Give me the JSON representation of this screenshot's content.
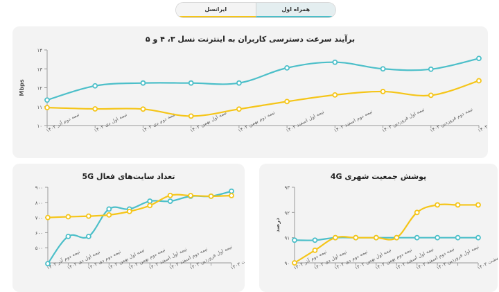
{
  "toggle": {
    "operator_mci": "همراه اول",
    "operator_irancell": "ایرانسل"
  },
  "colors": {
    "mci": "#4cbfc9",
    "irancell": "#f5c518"
  },
  "chart_data": [
    {
      "type": "line",
      "title": "برآیند سرعت دسترسی کاربران به اینترنت نسل ۳، ۴ و ۵",
      "ylabel": "Mbps",
      "ylim": [
        10,
        14
      ],
      "yticks": [
        10,
        11,
        12,
        13,
        14
      ],
      "ytick_labels": [
        "۱۰",
        "۱۱",
        "۱۲",
        "۱۳",
        "۱۴"
      ],
      "categories": [
        "نیمه دوم آذر ۱۴۰۲",
        "نیمه اول دی ۱۴۰۲",
        "نیمه دوم دی ۱۴۰۲",
        "نیمه اول بهمن ۱۴۰۲",
        "نیمه دوم بهمن ۱۴۰۲",
        "نیمه اول اسفند ۱۴۰۲",
        "نیمه دوم اسفند ۱۴۰۲",
        "نیمه اول فروردین ۱۴۰۳",
        "نیمه دوم فروردین ۱۴۰۳",
        "نیمه اول اردیبهشت ۱۴۰۳"
      ],
      "series": [
        {
          "name": "همراه اول",
          "values": [
            11.35,
            12.1,
            12.25,
            12.25,
            12.25,
            13.05,
            13.35,
            13.0,
            12.98,
            13.55
          ]
        },
        {
          "name": "ایرانسل",
          "values": [
            10.95,
            10.88,
            10.87,
            10.5,
            10.87,
            11.27,
            11.62,
            11.8,
            11.6,
            12.37
          ]
        }
      ]
    },
    {
      "type": "line",
      "title": "تعداد سایت‌های فعال 5G",
      "ylabel": "",
      "ylim": [
        400,
        900
      ],
      "yticks": [
        500,
        600,
        700,
        800,
        900
      ],
      "ytick_labels": [
        "۵۰۰",
        "۶۰۰",
        "۷۰۰",
        "۸۰۰",
        "۹۰۰"
      ],
      "categories": [
        "نیمه دوم آذر ۱۴۰۲",
        "نیمه اول دی ۱۴۰۲",
        "نیمه دوم دی ۱۴۰۲",
        "نیمه اول بهمن ۱۴۰۲",
        "نیمه دوم بهمن ۱۴۰۲",
        "نیمه اول اسفند ۱۴۰۲",
        "نیمه دوم اسفند ۱۴۰۲",
        "نیمه اول فروردین ۱۴۰۳",
        "",
        "نیمه اول اردیبهشت ۱۴۰۳"
      ],
      "series": [
        {
          "name": "همراه اول",
          "values": [
            395,
            575,
            575,
            756,
            756,
            808,
            808,
            841,
            841,
            874
          ]
        },
        {
          "name": "ایرانسل",
          "values": [
            700,
            705,
            709,
            717,
            740,
            779,
            846,
            845,
            841,
            845
          ]
        }
      ]
    },
    {
      "type": "line",
      "title": "پوشش جمعیت شهری 4G",
      "ylabel": "درصد",
      "ylim": [
        90,
        93
      ],
      "yticks": [
        90,
        91,
        92,
        93
      ],
      "ytick_labels": [
        "۹۰",
        "۹۱",
        "۹۲",
        "۹۳"
      ],
      "categories": [
        "نیمه دوم آذر ۱۴۰۲",
        "نیمه اول دی ۱۴۰۲",
        "نیمه دوم دی ۱۴۰۲",
        "نیمه اول بهمن ۱۴۰۲",
        "نیمه دوم بهمن ۱۴۰۲",
        "نیمه اول اسفند ۱۴۰۲",
        "نیمه دوم اسفند ۱۴۰۲",
        "نیمه اول فروردین ۱۴۰۳",
        "",
        "نیمه اول اردیبهشت ۱۴۰۳"
      ],
      "series": [
        {
          "name": "همراه اول",
          "values": [
            90.9,
            90.9,
            91,
            91,
            91,
            91,
            91,
            91,
            91,
            91
          ]
        },
        {
          "name": "ایرانسل",
          "values": [
            90,
            90.5,
            91,
            91,
            91,
            91,
            92,
            92.3,
            92.3,
            92.3
          ]
        }
      ]
    }
  ]
}
